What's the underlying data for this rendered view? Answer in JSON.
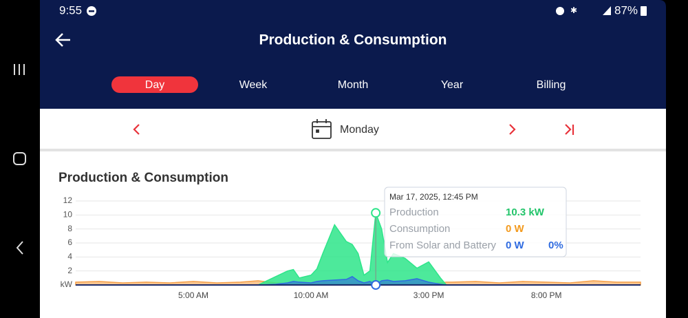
{
  "status_bar": {
    "time": "9:55",
    "battery": "87%"
  },
  "header": {
    "title": "Production & Consumption",
    "tabs": [
      "Day",
      "Week",
      "Month",
      "Year",
      "Billing"
    ],
    "active_tab": 0
  },
  "date_nav": {
    "label": "Monday"
  },
  "chart_data": {
    "type": "area",
    "title": "Production & Consumption",
    "x": [
      0,
      1,
      2,
      3,
      4,
      5,
      6,
      7,
      7.75,
      8.5,
      9,
      9.25,
      9.5,
      10,
      10.25,
      10.5,
      11,
      11.5,
      11.75,
      12,
      12.25,
      12.5,
      12.75,
      13,
      13.25,
      13.5,
      14,
      14.5,
      15,
      15.5,
      15.75,
      16,
      17,
      18,
      19,
      20,
      21,
      22,
      23,
      24
    ],
    "xlim": [
      0,
      24
    ],
    "xticks": [
      {
        "value": 5,
        "label": "5:00 AM"
      },
      {
        "value": 10,
        "label": "10:00 AM"
      },
      {
        "value": 15,
        "label": "3:00 PM"
      },
      {
        "value": 20,
        "label": "8:00 PM"
      }
    ],
    "ylim": [
      0,
      12
    ],
    "yticks": [
      {
        "value": 0,
        "label": "kW"
      },
      2,
      4,
      6,
      8,
      10,
      12
    ],
    "grid": true,
    "series": [
      {
        "name": "Production",
        "color": "#2ee58a",
        "values": [
          0,
          0,
          0,
          0,
          0,
          0,
          0,
          0,
          0,
          1.2,
          2.0,
          2.2,
          1.0,
          1.4,
          2.3,
          4.5,
          8.6,
          6.2,
          5.8,
          4.5,
          1.4,
          2.0,
          10.3,
          8.0,
          3.2,
          4.5,
          3.8,
          2.4,
          3.3,
          1.0,
          0,
          0,
          0,
          0,
          0,
          0,
          0,
          0,
          0,
          0
        ]
      },
      {
        "name": "Consumption",
        "color": "#f5a04a",
        "values": [
          0.4,
          0.5,
          0.3,
          0.4,
          0.3,
          0.5,
          0.3,
          0.4,
          0.6,
          0.3,
          0.2,
          0.2,
          0.2,
          0.2,
          0.2,
          0.2,
          0.2,
          0.2,
          0.2,
          0.2,
          0.2,
          0.2,
          0,
          0.2,
          0.2,
          0.2,
          0.2,
          0.2,
          0.2,
          0.3,
          0.4,
          0.4,
          0.5,
          0.3,
          0.5,
          0.4,
          0.3,
          0.6,
          0.4,
          0.4
        ]
      },
      {
        "name": "From Solar and Battery",
        "color": "#2f6be0",
        "values": [
          0,
          0,
          0,
          0,
          0,
          0,
          0,
          0,
          0,
          0.1,
          0.3,
          0.5,
          0.4,
          0.3,
          0.5,
          0.6,
          0.7,
          0.8,
          1.2,
          0.6,
          0.3,
          0.5,
          0,
          0.6,
          0.7,
          0.5,
          0.6,
          0.9,
          0.4,
          0.1,
          0,
          0,
          0,
          0,
          0,
          0,
          0,
          0,
          0,
          0
        ]
      }
    ],
    "tooltip": {
      "title": "Mar 17, 2025, 12:45 PM",
      "rows": [
        {
          "label": "Production",
          "value": "10.3 kW"
        },
        {
          "label": "Consumption",
          "value": "0 W"
        },
        {
          "label": "From Solar and Battery",
          "value": "0 W",
          "share": "0%"
        }
      ]
    }
  }
}
